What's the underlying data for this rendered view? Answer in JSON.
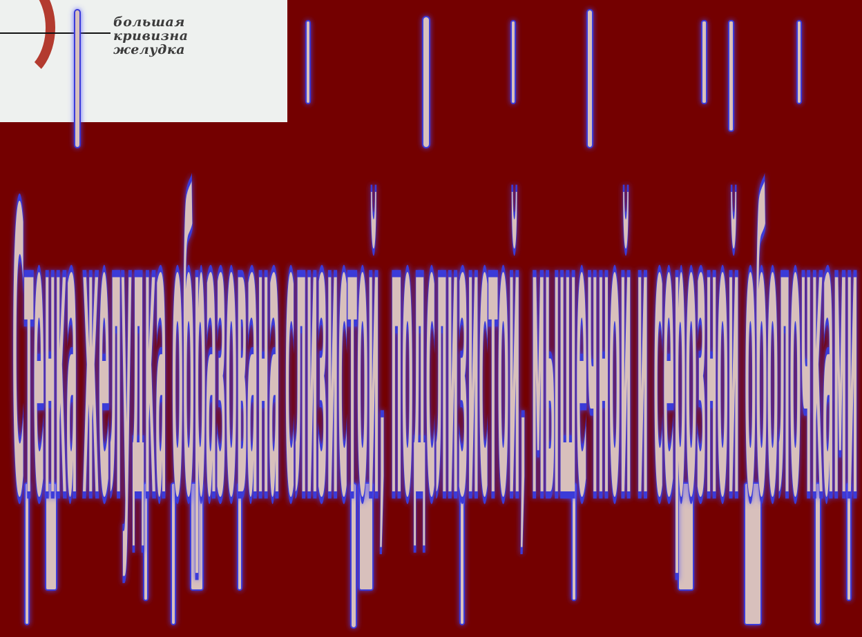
{
  "inset": {
    "caption_lines": [
      "большая",
      "кривизна",
      "желудка"
    ]
  },
  "slide": {
    "background_color": "#740000",
    "text_color": "#d8c0bc",
    "outline_color": "#3a3ad8",
    "title_line": "Стенка желудка образована слизистой, подслизистой, мышечной и серозной оболочками"
  }
}
